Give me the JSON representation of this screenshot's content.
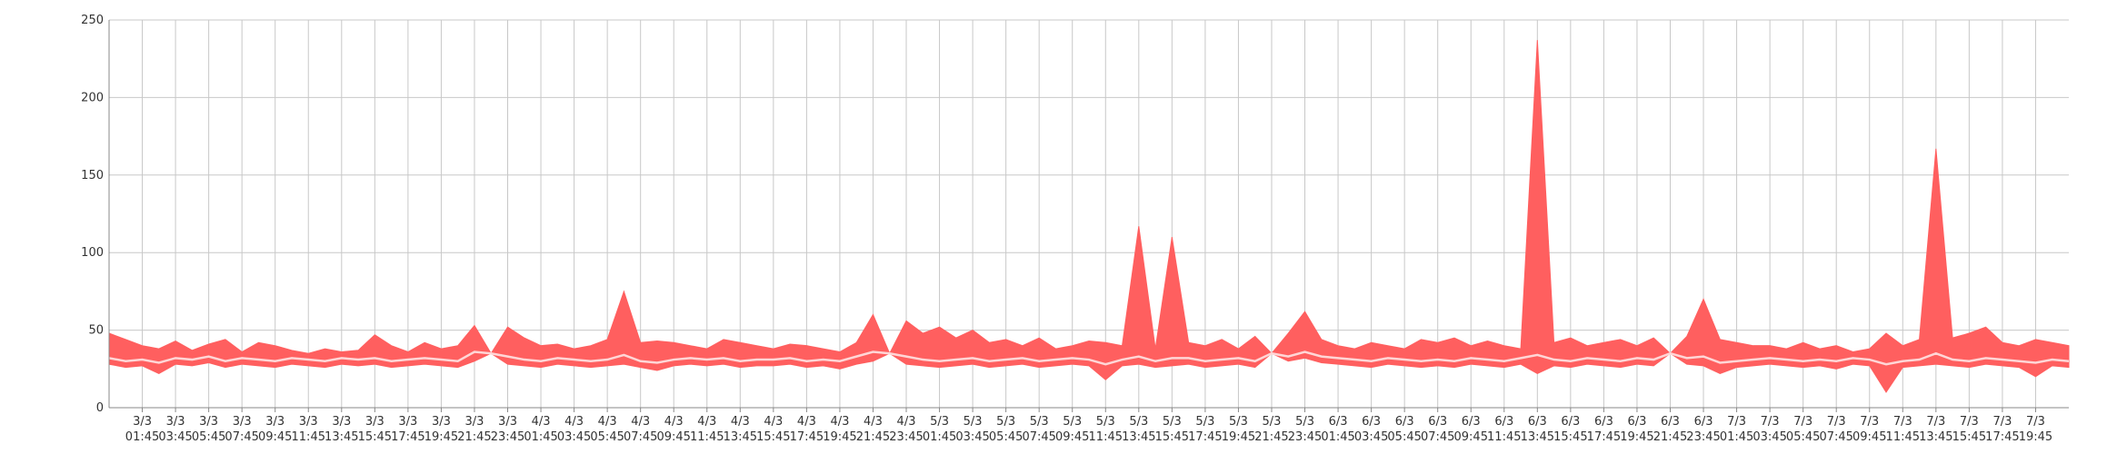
{
  "chart_data": {
    "type": "range_area",
    "x": [
      0,
      1,
      2,
      3,
      4,
      5,
      6,
      7,
      8,
      9,
      10,
      11,
      12,
      13,
      14,
      15,
      16,
      17,
      18,
      19,
      20,
      21,
      22,
      23,
      24,
      25,
      26,
      27,
      28,
      29,
      30,
      31,
      32,
      33,
      34,
      35,
      36,
      37,
      38,
      39,
      40,
      41,
      42,
      43,
      44,
      45,
      46,
      47,
      48,
      49,
      50,
      51,
      52,
      53,
      54,
      55,
      56,
      57,
      58,
      59,
      60,
      61,
      62,
      63,
      64,
      65,
      66,
      67,
      68,
      69,
      70,
      71,
      72,
      73,
      74,
      75,
      76,
      77,
      78,
      79,
      80,
      81,
      82,
      83,
      84,
      85,
      86,
      87,
      88,
      89,
      90,
      91,
      92,
      93,
      94,
      95,
      96,
      97,
      98,
      99,
      100,
      101,
      102,
      103,
      104,
      105,
      106,
      107,
      108,
      109,
      110,
      111,
      112,
      113,
      114,
      115,
      116,
      117,
      118
    ],
    "band": {
      "color": "#ff5f5f",
      "high": [
        48,
        44,
        40,
        38,
        43,
        37,
        41,
        44,
        36,
        42,
        40,
        37,
        35,
        38,
        36,
        37,
        47,
        40,
        36,
        42,
        38,
        40,
        53,
        35,
        52,
        45,
        40,
        41,
        38,
        40,
        44,
        75,
        42,
        43,
        42,
        40,
        38,
        44,
        42,
        40,
        38,
        41,
        40,
        38,
        36,
        42,
        60,
        35,
        56,
        48,
        52,
        45,
        50,
        42,
        44,
        40,
        45,
        38,
        40,
        43,
        42,
        40,
        117,
        38,
        110,
        42,
        40,
        44,
        38,
        46,
        35,
        48,
        62,
        44,
        40,
        38,
        42,
        40,
        38,
        44,
        42,
        45,
        40,
        43,
        40,
        38,
        237,
        42,
        45,
        40,
        42,
        44,
        40,
        45,
        35,
        46,
        70,
        44,
        42,
        40,
        40,
        38,
        42,
        38,
        40,
        36,
        38,
        48,
        40,
        44,
        167,
        45,
        48,
        52,
        42,
        40,
        44,
        42,
        40
      ],
      "low": [
        28,
        26,
        27,
        22,
        28,
        27,
        29,
        26,
        28,
        27,
        26,
        28,
        27,
        26,
        28,
        27,
        28,
        26,
        27,
        28,
        27,
        26,
        30,
        35,
        28,
        27,
        26,
        28,
        27,
        26,
        27,
        28,
        26,
        24,
        27,
        28,
        27,
        28,
        26,
        27,
        27,
        28,
        26,
        27,
        25,
        28,
        30,
        35,
        28,
        27,
        26,
        27,
        28,
        26,
        27,
        28,
        26,
        27,
        28,
        27,
        18,
        27,
        28,
        26,
        27,
        28,
        26,
        27,
        28,
        26,
        35,
        30,
        32,
        29,
        28,
        27,
        26,
        28,
        27,
        26,
        27,
        26,
        28,
        27,
        26,
        28,
        22,
        27,
        26,
        28,
        27,
        26,
        28,
        27,
        35,
        28,
        27,
        22,
        26,
        27,
        28,
        27,
        26,
        27,
        25,
        28,
        27,
        10,
        26,
        27,
        28,
        27,
        26,
        28,
        27,
        26,
        20,
        27,
        26
      ]
    },
    "line": {
      "color": "#ffd6d6",
      "values": [
        32,
        30,
        31,
        29,
        32,
        31,
        33,
        30,
        32,
        31,
        30,
        32,
        31,
        30,
        32,
        31,
        32,
        30,
        31,
        32,
        31,
        30,
        36,
        35,
        33,
        31,
        30,
        32,
        31,
        30,
        31,
        34,
        30,
        29,
        31,
        32,
        31,
        32,
        30,
        31,
        31,
        32,
        30,
        31,
        30,
        33,
        36,
        35,
        33,
        31,
        30,
        31,
        32,
        30,
        31,
        32,
        30,
        31,
        32,
        31,
        28,
        31,
        33,
        30,
        32,
        32,
        30,
        31,
        32,
        30,
        35,
        33,
        36,
        33,
        32,
        31,
        30,
        32,
        31,
        30,
        31,
        30,
        32,
        31,
        30,
        32,
        34,
        31,
        30,
        32,
        31,
        30,
        32,
        31,
        35,
        32,
        33,
        29,
        30,
        31,
        32,
        31,
        30,
        31,
        30,
        32,
        31,
        28,
        30,
        31,
        35,
        31,
        30,
        32,
        31,
        30,
        29,
        31,
        30
      ]
    },
    "xlim": [
      0,
      118
    ],
    "xticks": [
      {
        "value": 2,
        "label": "3/3 01:45"
      },
      {
        "value": 4,
        "label": "3/3 03:45"
      },
      {
        "value": 6,
        "label": "3/3 05:45"
      },
      {
        "value": 8,
        "label": "3/3 07:45"
      },
      {
        "value": 10,
        "label": "3/3 09:45"
      },
      {
        "value": 12,
        "label": "3/3 11:45"
      },
      {
        "value": 14,
        "label": "3/3 13:45"
      },
      {
        "value": 16,
        "label": "3/3 15:45"
      },
      {
        "value": 18,
        "label": "3/3 17:45"
      },
      {
        "value": 20,
        "label": "3/3 19:45"
      },
      {
        "value": 22,
        "label": "3/3 21:45"
      },
      {
        "value": 24,
        "label": "3/3 23:45"
      },
      {
        "value": 26,
        "label": "4/3 01:45"
      },
      {
        "value": 28,
        "label": "4/3 03:45"
      },
      {
        "value": 30,
        "label": "4/3 05:45"
      },
      {
        "value": 32,
        "label": "4/3 07:45"
      },
      {
        "value": 34,
        "label": "4/3 09:45"
      },
      {
        "value": 36,
        "label": "4/3 11:45"
      },
      {
        "value": 38,
        "label": "4/3 13:45"
      },
      {
        "value": 40,
        "label": "4/3 15:45"
      },
      {
        "value": 42,
        "label": "4/3 17:45"
      },
      {
        "value": 44,
        "label": "4/3 19:45"
      },
      {
        "value": 46,
        "label": "4/3 21:45"
      },
      {
        "value": 48,
        "label": "4/3 23:45"
      },
      {
        "value": 50,
        "label": "5/3 01:45"
      },
      {
        "value": 52,
        "label": "5/3 03:45"
      },
      {
        "value": 54,
        "label": "5/3 05:45"
      },
      {
        "value": 56,
        "label": "5/3 07:45"
      },
      {
        "value": 58,
        "label": "5/3 09:45"
      },
      {
        "value": 60,
        "label": "5/3 11:45"
      },
      {
        "value": 62,
        "label": "5/3 13:45"
      },
      {
        "value": 64,
        "label": "5/3 15:45"
      },
      {
        "value": 66,
        "label": "5/3 17:45"
      },
      {
        "value": 68,
        "label": "5/3 19:45"
      },
      {
        "value": 70,
        "label": "5/3 21:45"
      },
      {
        "value": 72,
        "label": "5/3 23:45"
      },
      {
        "value": 74,
        "label": "6/3 01:45"
      },
      {
        "value": 76,
        "label": "6/3 03:45"
      },
      {
        "value": 78,
        "label": "6/3 05:45"
      },
      {
        "value": 80,
        "label": "6/3 07:45"
      },
      {
        "value": 82,
        "label": "6/3 09:45"
      },
      {
        "value": 84,
        "label": "6/3 11:45"
      },
      {
        "value": 86,
        "label": "6/3 13:45"
      },
      {
        "value": 88,
        "label": "6/3 15:45"
      },
      {
        "value": 90,
        "label": "6/3 17:45"
      },
      {
        "value": 92,
        "label": "6/3 19:45"
      },
      {
        "value": 94,
        "label": "6/3 21:45"
      },
      {
        "value": 96,
        "label": "6/3 23:45"
      },
      {
        "value": 98,
        "label": "7/3 01:45"
      },
      {
        "value": 100,
        "label": "7/3 03:45"
      },
      {
        "value": 102,
        "label": "7/3 05:45"
      },
      {
        "value": 104,
        "label": "7/3 07:45"
      },
      {
        "value": 106,
        "label": "7/3 09:45"
      },
      {
        "value": 108,
        "label": "7/3 11:45"
      },
      {
        "value": 110,
        "label": "7/3 13:45"
      },
      {
        "value": 112,
        "label": "7/3 15:45"
      },
      {
        "value": 114,
        "label": "7/3 17:45"
      },
      {
        "value": 116,
        "label": "7/3 19:45"
      }
    ],
    "ylim": [
      0,
      250
    ],
    "yticks": [
      0,
      50,
      100,
      150,
      200,
      250
    ],
    "grid": true
  }
}
